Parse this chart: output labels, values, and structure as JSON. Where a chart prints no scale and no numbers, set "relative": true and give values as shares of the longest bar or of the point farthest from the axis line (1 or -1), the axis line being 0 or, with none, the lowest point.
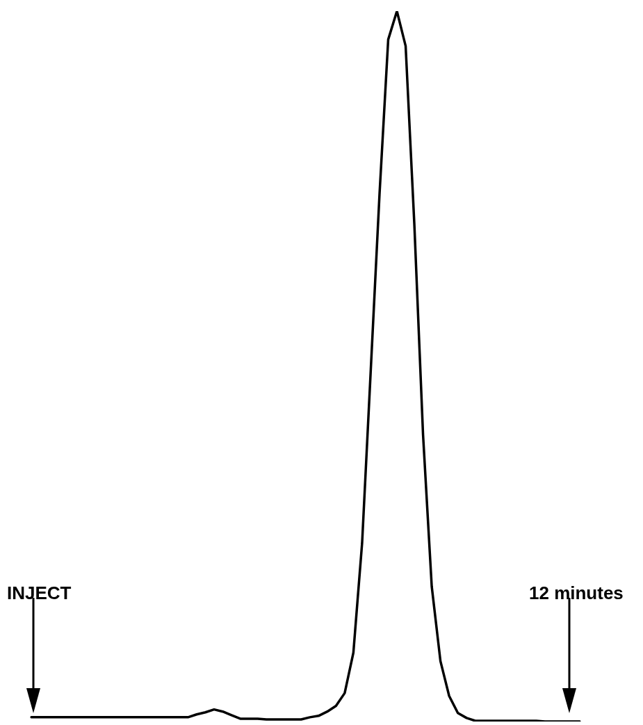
{
  "chart_data": {
    "type": "line",
    "relative": true,
    "marker": "none",
    "line_style": "solid",
    "categories": [
      null,
      null,
      null,
      null,
      null,
      null,
      null,
      null,
      null,
      null,
      null,
      null,
      null,
      null,
      null,
      null,
      null,
      null,
      null,
      null,
      null,
      null,
      null,
      null,
      null,
      null,
      null,
      null,
      null,
      null,
      null,
      null,
      null,
      null,
      null,
      null,
      null,
      null,
      null,
      null,
      null,
      null,
      null,
      null,
      null,
      null,
      null,
      null,
      null,
      null,
      null,
      null,
      null,
      null,
      null,
      null,
      null,
      null,
      null,
      null,
      null,
      null,
      null,
      null
    ],
    "series": [
      {
        "color": "#000000",
        "values": [
          0.006,
          0.006,
          0.006,
          0.006,
          0.006,
          0.006,
          0.006,
          0.006,
          0.006,
          0.006,
          0.006,
          0.006,
          0.006,
          0.006,
          0.006,
          0.006,
          0.006,
          0.006,
          0.006,
          0.01,
          0.013,
          0.017,
          0.014,
          0.009,
          0.004,
          0.004,
          0.004,
          0.003,
          0.003,
          0.003,
          0.003,
          0.003,
          0.006,
          0.008,
          0.014,
          0.022,
          0.04,
          0.097,
          0.251,
          0.496,
          0.742,
          0.96,
          1,
          0.951,
          0.7,
          0.404,
          0.19,
          0.085,
          0.036,
          0.012,
          0.005,
          0.001,
          0.001,
          0.001,
          0.001,
          0.001,
          0.001,
          0.001,
          0.001,
          0,
          0,
          0,
          0,
          0
        ]
      }
    ],
    "annotations": [
      "INJECT",
      "12 minutes"
    ]
  }
}
